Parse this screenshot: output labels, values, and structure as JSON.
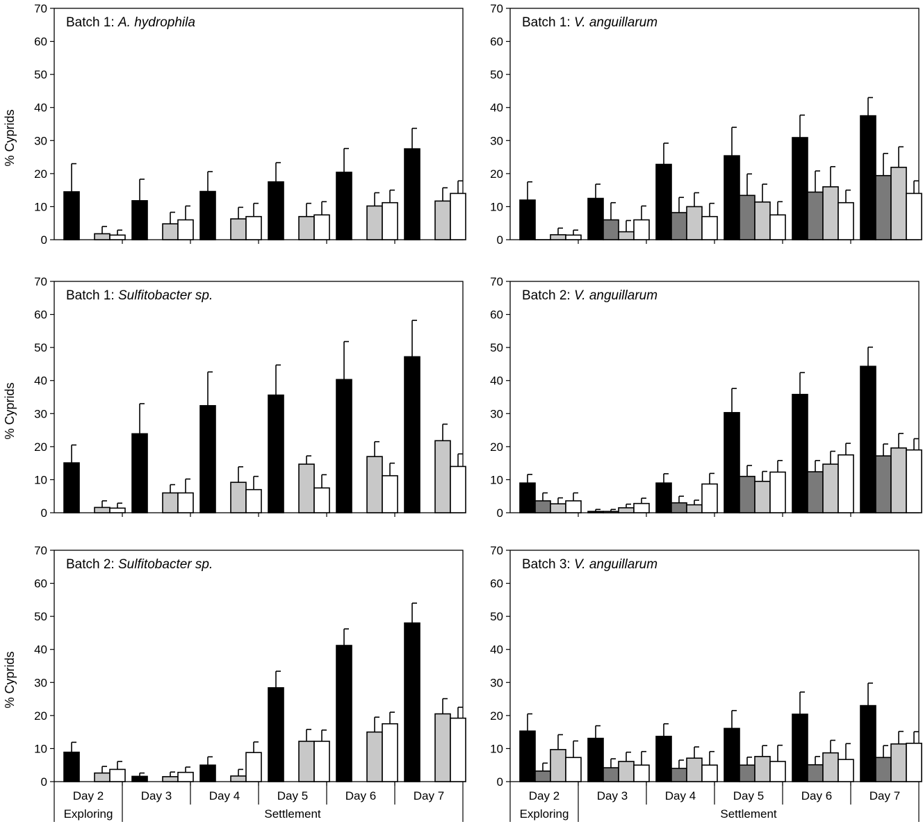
{
  "colors": {
    "series": [
      "#000000",
      "#7a7a7a",
      "#c8c8c8",
      "#ffffff"
    ],
    "stroke": "#000000"
  },
  "axis": {
    "ylabel": "% Cyprids",
    "yticks": [
      0,
      10,
      20,
      30,
      40,
      50,
      60,
      70
    ],
    "categories": [
      "Day 2",
      "Day 3",
      "Day 4",
      "Day 5",
      "Day 6",
      "Day 7"
    ],
    "phase_exploring": "Exploring",
    "phase_settlement": "Settlement"
  },
  "chart_data": [
    {
      "type": "bar",
      "title_prefix": "Batch 1: ",
      "title_species": "A. hydrophila",
      "ylabel": "% Cyprids",
      "ylim": [
        0,
        70
      ],
      "categories": [
        "Day 2",
        "Day 3",
        "Day 4",
        "Day 5",
        "Day 6",
        "Day 7"
      ],
      "series": [
        {
          "values": [
            14.5,
            11.8,
            14.6,
            17.5,
            20.4,
            27.5
          ],
          "errors": [
            8.5,
            6.5,
            6.0,
            5.8,
            7.2,
            6.2
          ]
        },
        {
          "values": [
            null,
            null,
            null,
            null,
            null,
            null
          ],
          "errors": [
            null,
            null,
            null,
            null,
            null,
            null
          ]
        },
        {
          "values": [
            1.8,
            4.8,
            6.3,
            7.0,
            10.2,
            11.7
          ],
          "errors": [
            2.2,
            3.5,
            3.5,
            4.0,
            4.0,
            4.0
          ]
        },
        {
          "values": [
            1.4,
            6.0,
            7.0,
            7.5,
            11.2,
            14.0
          ],
          "errors": [
            1.5,
            4.2,
            4.0,
            4.0,
            3.8,
            3.8
          ]
        }
      ]
    },
    {
      "type": "bar",
      "title_prefix": "Batch 1: ",
      "title_species": "V. anguillarum",
      "ylabel": "% Cyprids",
      "ylim": [
        0,
        70
      ],
      "categories": [
        "Day 2",
        "Day 3",
        "Day 4",
        "Day 5",
        "Day 6",
        "Day 7"
      ],
      "series": [
        {
          "values": [
            12.0,
            12.5,
            22.8,
            25.4,
            30.9,
            37.5
          ],
          "errors": [
            5.5,
            4.3,
            6.4,
            8.6,
            6.8,
            5.5
          ]
        },
        {
          "values": [
            0.0,
            6.0,
            8.2,
            13.4,
            14.4,
            19.4
          ],
          "errors": [
            0.0,
            5.2,
            4.6,
            6.5,
            6.4,
            6.7
          ]
        },
        {
          "values": [
            1.5,
            2.4,
            10.0,
            11.4,
            16.0,
            21.9
          ],
          "errors": [
            2.0,
            3.4,
            4.2,
            5.4,
            6.1,
            6.2
          ]
        },
        {
          "values": [
            1.4,
            6.0,
            7.0,
            7.5,
            11.2,
            14.0
          ],
          "errors": [
            1.5,
            4.2,
            4.0,
            4.0,
            3.8,
            3.8
          ]
        }
      ]
    },
    {
      "type": "bar",
      "title_prefix": "Batch 1: ",
      "title_species": "Sulfitobacter sp.",
      "ylabel": "% Cyprids",
      "ylim": [
        0,
        70
      ],
      "categories": [
        "Day 2",
        "Day 3",
        "Day 4",
        "Day 5",
        "Day 6",
        "Day 7"
      ],
      "series": [
        {
          "values": [
            15.1,
            23.9,
            32.4,
            35.6,
            40.3,
            47.2
          ],
          "errors": [
            5.4,
            9.1,
            10.2,
            9.1,
            11.5,
            11.0
          ]
        },
        {
          "values": [
            null,
            null,
            null,
            null,
            null,
            null
          ],
          "errors": [
            null,
            null,
            null,
            null,
            null,
            null
          ]
        },
        {
          "values": [
            1.6,
            6.0,
            9.2,
            14.7,
            17.0,
            21.8
          ],
          "errors": [
            2.0,
            2.5,
            4.7,
            2.5,
            4.5,
            5.0
          ]
        },
        {
          "values": [
            1.4,
            6.0,
            7.0,
            7.5,
            11.2,
            14.0
          ],
          "errors": [
            1.5,
            4.2,
            4.0,
            4.0,
            3.8,
            3.8
          ]
        }
      ]
    },
    {
      "type": "bar",
      "title_prefix": "Batch 2: ",
      "title_species": "V. anguillarum",
      "ylabel": "% Cyprids",
      "ylim": [
        0,
        70
      ],
      "categories": [
        "Day 2",
        "Day 3",
        "Day 4",
        "Day 5",
        "Day 6",
        "Day 7"
      ],
      "series": [
        {
          "values": [
            9.0,
            0.4,
            9.0,
            30.3,
            35.8,
            44.3
          ],
          "errors": [
            2.6,
            0.6,
            2.8,
            7.3,
            6.6,
            5.8
          ]
        },
        {
          "values": [
            3.6,
            0.4,
            3.0,
            11.0,
            12.4,
            17.2
          ],
          "errors": [
            2.4,
            0.6,
            2.0,
            3.3,
            3.4,
            3.6
          ]
        },
        {
          "values": [
            2.7,
            1.5,
            2.4,
            9.5,
            14.7,
            19.6
          ],
          "errors": [
            1.8,
            1.1,
            1.4,
            3.0,
            3.9,
            4.4
          ]
        },
        {
          "values": [
            3.6,
            2.8,
            8.7,
            12.3,
            17.5,
            19.0
          ],
          "errors": [
            2.4,
            1.6,
            3.2,
            3.5,
            3.5,
            3.4
          ]
        }
      ]
    },
    {
      "type": "bar",
      "title_prefix": "Batch 2: ",
      "title_species": "Sulfitobacter sp.",
      "ylabel": "% Cyprids",
      "ylim": [
        0,
        70
      ],
      "categories": [
        "Day 2",
        "Day 3",
        "Day 4",
        "Day 5",
        "Day 6",
        "Day 7"
      ],
      "series": [
        {
          "values": [
            8.9,
            1.6,
            5.0,
            28.4,
            41.2,
            48.0
          ],
          "errors": [
            3.0,
            1.0,
            2.5,
            5.0,
            5.0,
            6.0
          ]
        },
        {
          "values": [
            null,
            null,
            null,
            null,
            null,
            null
          ],
          "errors": [
            null,
            null,
            null,
            null,
            null,
            null
          ]
        },
        {
          "values": [
            2.6,
            1.5,
            1.7,
            12.2,
            15.0,
            20.5
          ],
          "errors": [
            2.0,
            1.4,
            2.0,
            3.6,
            4.5,
            4.6
          ]
        },
        {
          "values": [
            3.7,
            2.8,
            8.8,
            12.2,
            17.5,
            19.2
          ],
          "errors": [
            2.4,
            1.6,
            3.2,
            3.4,
            3.5,
            3.3
          ]
        }
      ]
    },
    {
      "type": "bar",
      "title_prefix": "Batch 3: ",
      "title_species": "V. anguillarum",
      "ylabel": "% Cyprids",
      "ylim": [
        0,
        70
      ],
      "categories": [
        "Day 2",
        "Day 3",
        "Day 4",
        "Day 5",
        "Day 6",
        "Day 7"
      ],
      "series": [
        {
          "values": [
            15.3,
            13.1,
            13.7,
            16.1,
            20.4,
            23.0
          ],
          "errors": [
            5.2,
            3.8,
            3.8,
            5.4,
            6.7,
            6.8
          ]
        },
        {
          "values": [
            3.2,
            4.2,
            4.0,
            5.0,
            5.1,
            7.3
          ],
          "errors": [
            2.4,
            2.7,
            2.5,
            2.4,
            2.5,
            3.6
          ]
        },
        {
          "values": [
            9.7,
            6.1,
            7.1,
            7.6,
            8.7,
            11.4
          ],
          "errors": [
            4.5,
            2.8,
            3.4,
            3.3,
            3.8,
            3.8
          ]
        },
        {
          "values": [
            7.3,
            5.0,
            5.0,
            6.1,
            6.7,
            11.6
          ],
          "errors": [
            5.0,
            4.1,
            4.1,
            4.9,
            4.8,
            3.5
          ]
        }
      ]
    }
  ]
}
